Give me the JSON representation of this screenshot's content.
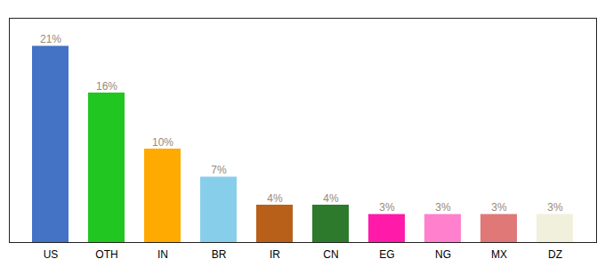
{
  "chart_data": {
    "type": "bar",
    "categories": [
      "US",
      "OTH",
      "IN",
      "BR",
      "IR",
      "CN",
      "EG",
      "NG",
      "MX",
      "DZ"
    ],
    "values": [
      21,
      16,
      10,
      7,
      4,
      4,
      3,
      3,
      3,
      3
    ],
    "value_labels": [
      "21%",
      "16%",
      "10%",
      "7%",
      "4%",
      "4%",
      "3%",
      "3%",
      "3%",
      "3%"
    ],
    "colors": [
      "#4472c4",
      "#21c621",
      "#ffaa00",
      "#87ceeb",
      "#b8601a",
      "#2d7a2d",
      "#ff1aaa",
      "#ff80cc",
      "#e07878",
      "#f0f0dc"
    ],
    "ylim": [
      0,
      24
    ],
    "data_labels": true,
    "tick_labels": "x",
    "grid": false
  }
}
